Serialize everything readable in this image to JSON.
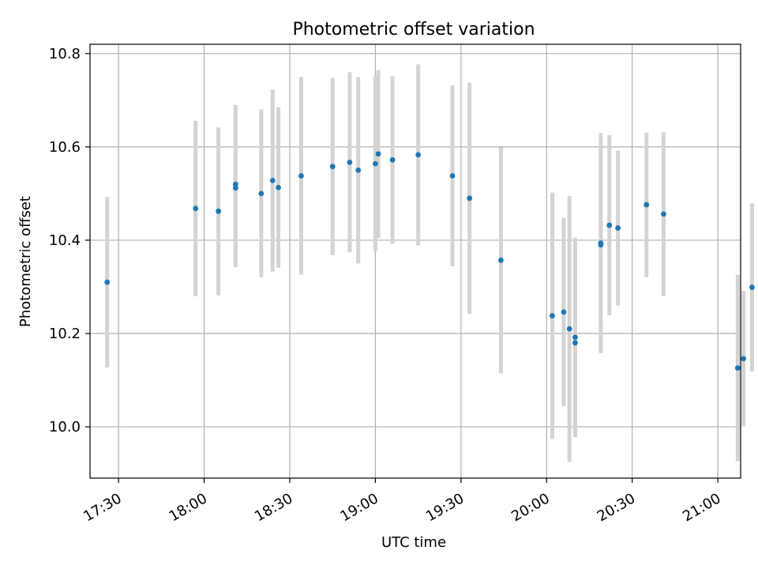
{
  "chart_data": {
    "type": "scatter",
    "title": "Photometric offset variation",
    "xlabel": "UTC time",
    "ylabel": "Photometric offset",
    "x_is_time": true,
    "xlim": [
      "17:20",
      "21:08"
    ],
    "ylim": [
      9.89,
      10.82
    ],
    "x_ticks": [
      "17:30",
      "18:00",
      "18:30",
      "19:00",
      "19:30",
      "20:00",
      "20:30",
      "21:00"
    ],
    "y_ticks": [
      10.0,
      10.2,
      10.4,
      10.6,
      10.8
    ],
    "y_tick_labels": [
      "10.0",
      "10.2",
      "10.4",
      "10.6",
      "10.8"
    ],
    "grid": true,
    "colors": {
      "point": "#1f77b4",
      "errorbar": "#d3d3d3",
      "grid": "#b0b0b0",
      "axes": "#000000"
    },
    "series": [
      {
        "points": [
          {
            "t": "17:26",
            "y": 10.31,
            "err": 0.183
          },
          {
            "t": "17:57",
            "y": 10.468,
            "err": 0.188
          },
          {
            "t": "18:05",
            "y": 10.462,
            "err": 0.18
          },
          {
            "t": "18:11",
            "y": 10.52,
            "err": 0.17
          },
          {
            "t": "18:11",
            "y": 10.512,
            "err": 0.17
          },
          {
            "t": "18:20",
            "y": 10.5,
            "err": 0.18
          },
          {
            "t": "18:24",
            "y": 10.528,
            "err": 0.195
          },
          {
            "t": "18:26",
            "y": 10.513,
            "err": 0.172
          },
          {
            "t": "18:34",
            "y": 10.538,
            "err": 0.212
          },
          {
            "t": "18:45",
            "y": 10.558,
            "err": 0.19
          },
          {
            "t": "18:51",
            "y": 10.567,
            "err": 0.193
          },
          {
            "t": "18:54",
            "y": 10.55,
            "err": 0.2
          },
          {
            "t": "19:00",
            "y": 10.564,
            "err": 0.188
          },
          {
            "t": "19:01",
            "y": 10.585,
            "err": 0.18
          },
          {
            "t": "19:06",
            "y": 10.572,
            "err": 0.18
          },
          {
            "t": "19:15",
            "y": 10.583,
            "err": 0.194
          },
          {
            "t": "19:27",
            "y": 10.538,
            "err": 0.194
          },
          {
            "t": "19:33",
            "y": 10.49,
            "err": 0.248
          },
          {
            "t": "19:44",
            "y": 10.357,
            "err": 0.242
          },
          {
            "t": "20:02",
            "y": 10.238,
            "err": 0.264
          },
          {
            "t": "20:06",
            "y": 10.246,
            "err": 0.202
          },
          {
            "t": "20:08",
            "y": 10.21,
            "err": 0.285
          },
          {
            "t": "20:10",
            "y": 10.192,
            "err": 0.214
          },
          {
            "t": "20:10",
            "y": 10.18,
            "err": 0.2
          },
          {
            "t": "20:19",
            "y": 10.394,
            "err": 0.236
          },
          {
            "t": "20:19",
            "y": 10.39,
            "err": 0.22
          },
          {
            "t": "20:22",
            "y": 10.432,
            "err": 0.193
          },
          {
            "t": "20:25",
            "y": 10.426,
            "err": 0.166
          },
          {
            "t": "20:35",
            "y": 10.476,
            "err": 0.155
          },
          {
            "t": "20:41",
            "y": 10.456,
            "err": 0.176
          },
          {
            "t": "21:07",
            "y": 10.126,
            "err": 0.2
          },
          {
            "t": "21:09",
            "y": 10.146,
            "err": 0.145
          },
          {
            "t": "21:12",
            "y": 10.299,
            "err": 0.18
          }
        ]
      }
    ]
  }
}
